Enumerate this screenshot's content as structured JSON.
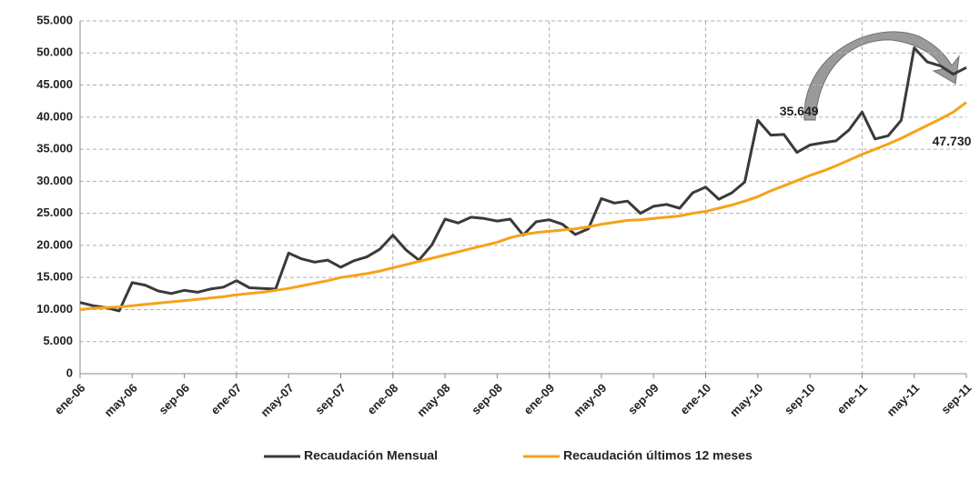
{
  "chart_data": {
    "type": "line",
    "categories": [
      "ene-06",
      null,
      null,
      null,
      "may-06",
      null,
      null,
      null,
      "sep-06",
      null,
      null,
      null,
      "ene-07",
      null,
      null,
      null,
      "may-07",
      null,
      null,
      null,
      "sep-07",
      null,
      null,
      null,
      "ene-08",
      null,
      null,
      null,
      "may-08",
      null,
      null,
      null,
      "sep-08",
      null,
      null,
      null,
      "ene-09",
      null,
      null,
      null,
      "may-09",
      null,
      null,
      null,
      "sep-09",
      null,
      null,
      null,
      "ene-10",
      null,
      null,
      null,
      "may-10",
      null,
      null,
      null,
      "sep-10",
      null,
      null,
      null,
      "ene-11",
      null,
      null,
      null,
      "may-11",
      null,
      null,
      null,
      "sep-11"
    ],
    "series": [
      {
        "name": "Recaudación Mensual",
        "color": "#3a3a3a",
        "values": [
          11100,
          10600,
          10300,
          9800,
          14200,
          13800,
          12900,
          12500,
          13000,
          12700,
          13200,
          13500,
          14500,
          13400,
          13300,
          13200,
          18800,
          17900,
          17400,
          17700,
          16600,
          17600,
          18200,
          19400,
          21600,
          19300,
          17700,
          20100,
          24100,
          23500,
          24400,
          24200,
          23800,
          24100,
          21600,
          23700,
          24000,
          23300,
          21700,
          22600,
          27300,
          26600,
          26900,
          25000,
          26100,
          26400,
          25800,
          28200,
          29100,
          27200,
          28200,
          29900,
          39500,
          37200,
          37300,
          34500,
          35649,
          36000,
          36300,
          38000,
          40800,
          36600,
          37100,
          39500,
          50800,
          48600,
          48000,
          46700,
          47730
        ],
        "value_labels": [
          null,
          null,
          null,
          null,
          null,
          null,
          null,
          null,
          null,
          null,
          null,
          null,
          null,
          null,
          null,
          null,
          null,
          null,
          null,
          null,
          null,
          null,
          null,
          null,
          null,
          null,
          null,
          null,
          null,
          null,
          null,
          null,
          null,
          null,
          null,
          null,
          null,
          null,
          null,
          null,
          null,
          null,
          null,
          null,
          null,
          null,
          null,
          null,
          null,
          null,
          null,
          null,
          null,
          null,
          null,
          null,
          "35.649",
          null,
          null,
          null,
          null,
          null,
          null,
          null,
          null,
          null,
          null,
          null,
          "47.730"
        ]
      },
      {
        "name": "Recaudación últimos 12 meses",
        "color": "#f5a31a",
        "values": [
          10000,
          10200,
          10300,
          10400,
          10600,
          10800,
          11000,
          11200,
          11400,
          11600,
          11800,
          12000,
          12300,
          12500,
          12700,
          13000,
          13300,
          13700,
          14100,
          14500,
          15000,
          15300,
          15600,
          16000,
          16500,
          17000,
          17500,
          18000,
          18500,
          19000,
          19500,
          20000,
          20500,
          21200,
          21700,
          22000,
          22200,
          22400,
          22600,
          22900,
          23300,
          23600,
          23900,
          24000,
          24200,
          24400,
          24600,
          25000,
          25300,
          25800,
          26300,
          26900,
          27600,
          28500,
          29300,
          30100,
          30900,
          31600,
          32400,
          33300,
          34200,
          35000,
          35800,
          36700,
          37700,
          38700,
          39700,
          40800,
          42300
        ]
      }
    ],
    "ylim": [
      0,
      55000
    ],
    "yticks": [
      0,
      {
        "value": 5000,
        "label": "5.000"
      },
      {
        "value": 10000,
        "label": "10.000"
      },
      {
        "value": 15000,
        "label": "15.000"
      },
      {
        "value": 20000,
        "label": "20.000"
      },
      {
        "value": 25000,
        "label": "25.000"
      },
      {
        "value": 30000,
        "label": "30.000"
      },
      {
        "value": 35000,
        "label": "35.000"
      },
      {
        "value": 40000,
        "label": "40.000"
      },
      {
        "value": 45000,
        "label": "45.000"
      },
      {
        "value": 50000,
        "label": "50.000"
      },
      {
        "value": 55000,
        "label": "55.000"
      }
    ],
    "grid": true
  }
}
